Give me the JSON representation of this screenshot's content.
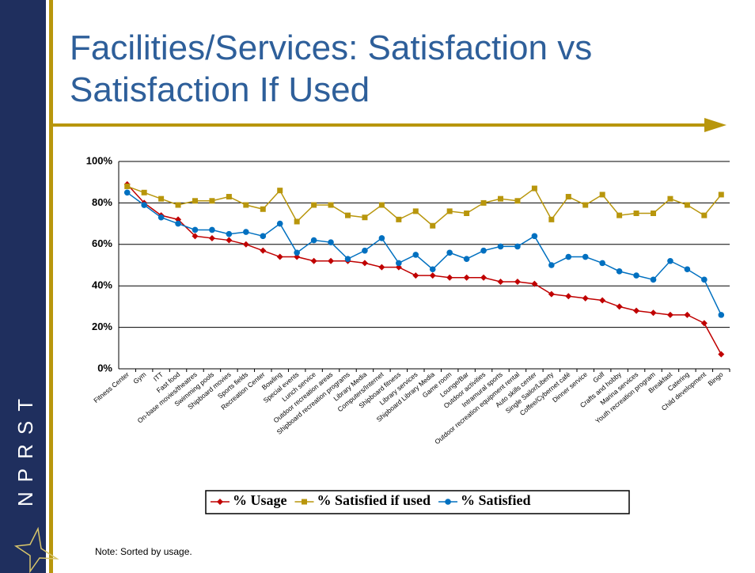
{
  "side_label": "NPRST",
  "note": "Note:  Sorted by usage.",
  "chart_data": {
    "type": "line",
    "title": [
      "Facilities/Services: Satisfaction vs",
      "Satisfaction If Used"
    ],
    "categories": [
      "Fitness Center",
      "Gym",
      "ITT",
      "Fast food",
      "On-base movies/theatres",
      "Swimming pools",
      "Shipboard movies",
      "Sports fields",
      "Recreation Center",
      "Bowling",
      "Special events",
      "Lunch service",
      "Outdoor recreation areas",
      "Shipboard recreation programs",
      "Library Media",
      "Computers/Internet",
      "Shipboard fitness",
      "Library services",
      "Shipboard Library Media",
      "Game room",
      "Lounge/Bar",
      "Outdoor activities",
      "Intramural sports",
      "Outdoor recreation equipment rental",
      "Auto skills center",
      "Single Sailor/Liberty",
      "Coffee/Cybernet café",
      "Dinner service",
      "Golf",
      "Crafts and hobby",
      "Marina services",
      "Youth recreation program",
      "Breakfast",
      "Catering",
      "Child development",
      "Bingo"
    ],
    "series": [
      {
        "name": "% Usage",
        "color": "#c00000",
        "marker": "diamond",
        "values": [
          89,
          80,
          74,
          72,
          64,
          63,
          62,
          60,
          57,
          54,
          54,
          52,
          52,
          52,
          51,
          49,
          49,
          45,
          45,
          44,
          44,
          44,
          42,
          42,
          41,
          36,
          35,
          34,
          33,
          30,
          28,
          27,
          26,
          26,
          22,
          7
        ]
      },
      {
        "name": "% Satisfied if used",
        "color": "#b8960c",
        "marker": "square",
        "values": [
          88,
          85,
          82,
          79,
          81,
          81,
          83,
          79,
          77,
          86,
          71,
          79,
          79,
          74,
          73,
          79,
          72,
          76,
          69,
          76,
          75,
          80,
          82,
          81,
          87,
          72,
          83,
          79,
          84,
          74,
          75,
          75,
          82,
          79,
          74,
          84
        ]
      },
      {
        "name": "% Satisfied",
        "color": "#0070c0",
        "marker": "circle",
        "values": [
          85,
          79,
          73,
          70,
          67,
          67,
          65,
          66,
          64,
          70,
          56,
          62,
          61,
          53,
          57,
          63,
          51,
          55,
          48,
          56,
          53,
          57,
          59,
          59,
          64,
          50,
          54,
          54,
          51,
          47,
          45,
          43,
          52,
          48,
          43,
          26
        ]
      }
    ],
    "ylim": [
      0,
      100
    ],
    "yticks": [
      {
        "value": 0,
        "label": "0%"
      },
      {
        "value": 20,
        "label": "20%"
      },
      {
        "value": 40,
        "label": "40%"
      },
      {
        "value": 60,
        "label": "60%"
      },
      {
        "value": 80,
        "label": "80%"
      },
      {
        "value": 100,
        "label": "100%"
      }
    ],
    "grid": true,
    "legend": "bottom"
  }
}
